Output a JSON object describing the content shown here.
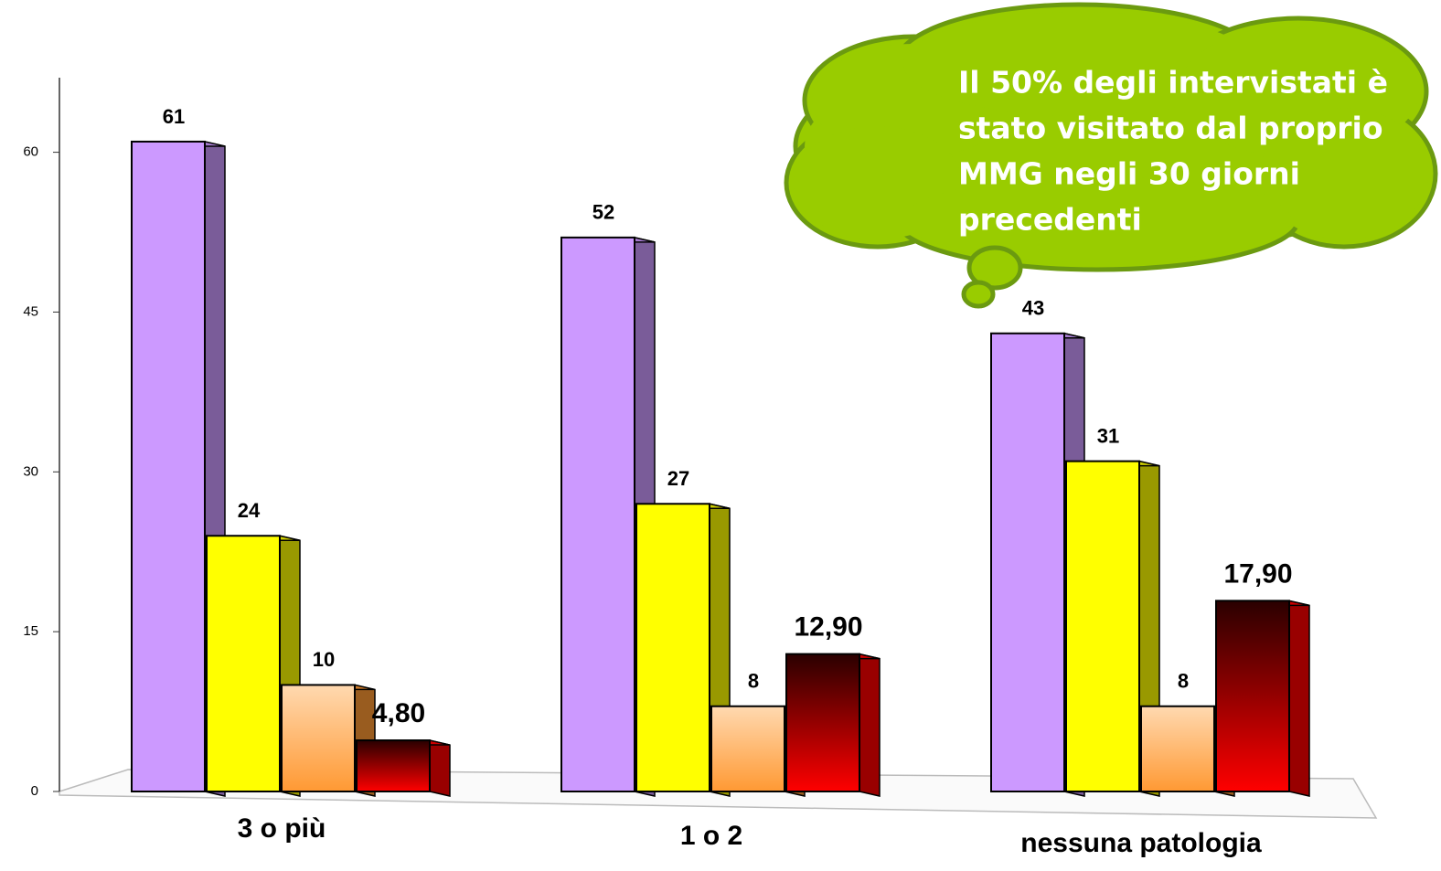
{
  "chart_data": {
    "type": "bar3d",
    "categories": [
      "3 o più",
      "1 o 2",
      "nessuna patologia"
    ],
    "series": [
      {
        "color": "#cc99ff",
        "values": [
          61,
          52,
          43
        ]
      },
      {
        "color": "#ffff00",
        "values": [
          24,
          27,
          31
        ]
      },
      {
        "color": "#ff9933",
        "values": [
          10,
          8,
          8
        ]
      },
      {
        "color": "#ff0000",
        "values": [
          4.8,
          12.9,
          17.9
        ],
        "value_labels": [
          "4,80",
          "12,90",
          "17,90"
        ]
      }
    ],
    "ylim": [
      0,
      67
    ],
    "yticks": [
      0,
      15,
      30,
      45,
      60
    ],
    "annotation": [
      "Il 50% degli intervistati è",
      "stato visitato dal proprio",
      "MMG negli 30 giorni",
      "precedenti"
    ]
  }
}
